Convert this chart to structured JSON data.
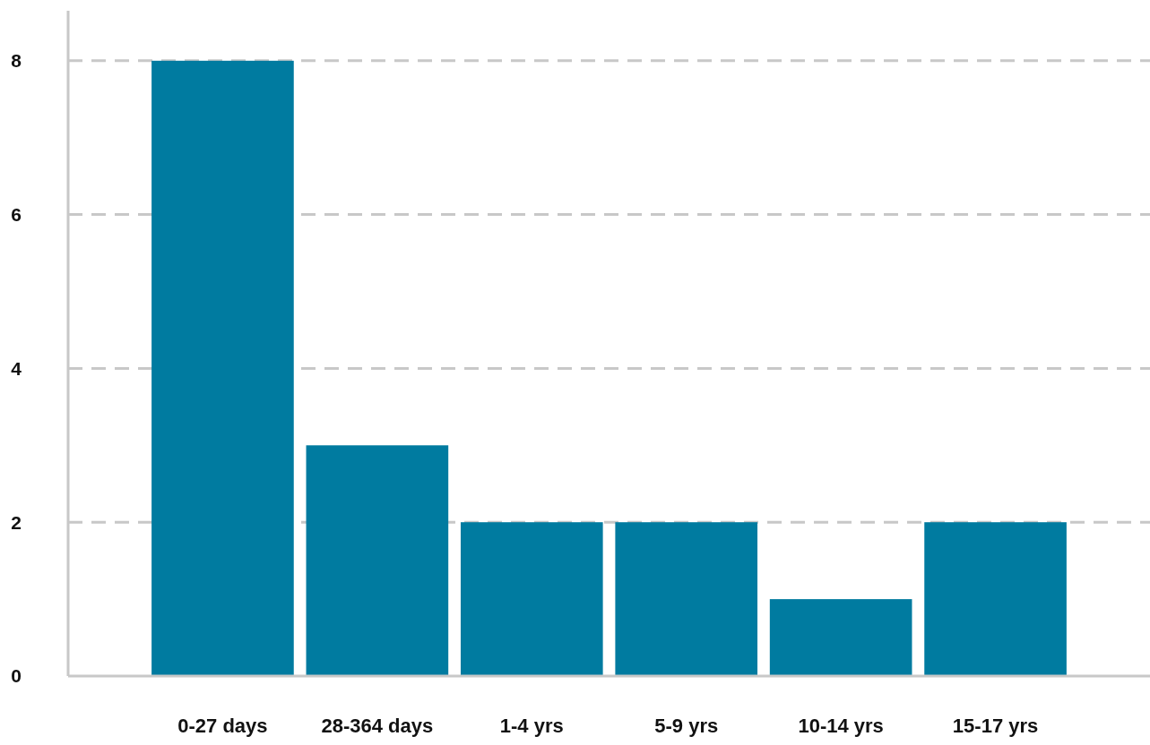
{
  "chart_data": {
    "type": "bar",
    "categories": [
      "0-27 days",
      "28-364 days",
      "1-4 yrs",
      "5-9 yrs",
      "10-14 yrs",
      "15-17 yrs"
    ],
    "values": [
      8,
      3,
      2,
      2,
      1,
      2
    ],
    "color": "#007ba0",
    "ylim": [
      0,
      8.65
    ],
    "yticks": [
      0,
      2,
      4,
      6,
      8
    ],
    "grid": "y"
  }
}
